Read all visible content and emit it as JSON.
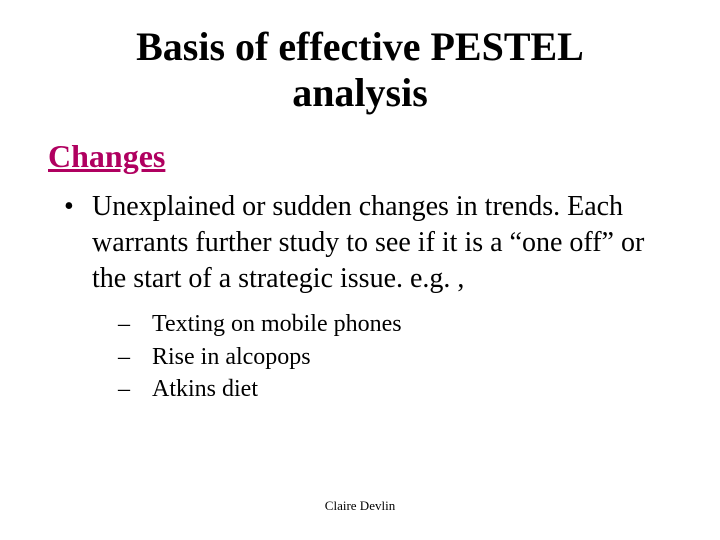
{
  "title_line1": "Basis of effective PESTEL",
  "title_line2": "analysis",
  "subheading": "Changes",
  "subheading_color": "#b00060",
  "bullet_marker": "•",
  "bullet1_text": "Unexplained or sudden changes in trends. Each warrants further study to see if it is a “one off” or the start of a strategic issue. e.g. ,",
  "sub_marker": "–",
  "sub1": "Texting on mobile phones",
  "sub2": "Rise in alcopops",
  "sub3": "Atkins diet",
  "footer": "Claire Devlin",
  "colors": {
    "background": "#ffffff",
    "text": "#000000"
  }
}
